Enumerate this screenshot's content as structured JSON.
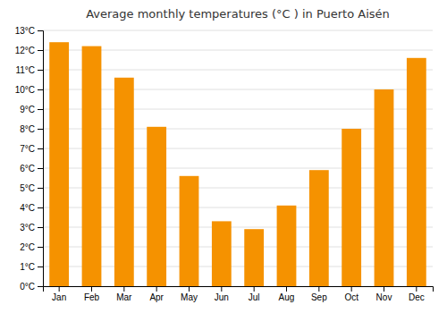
{
  "chart_data": {
    "type": "bar",
    "title": "Average monthly temperatures (°C ) in Puerto Aisén",
    "categories": [
      "Jan",
      "Feb",
      "Mar",
      "Apr",
      "May",
      "Jun",
      "Jul",
      "Aug",
      "Sep",
      "Oct",
      "Nov",
      "Dec"
    ],
    "values": [
      12.4,
      12.2,
      10.6,
      8.1,
      5.6,
      3.3,
      2.9,
      4.1,
      5.9,
      8.0,
      10.0,
      11.6
    ],
    "color": "#F59200",
    "ylim": [
      0,
      13
    ],
    "yticks": [
      {
        "value": 0,
        "label": "0°C"
      },
      {
        "value": 1,
        "label": "1°C"
      },
      {
        "value": 2,
        "label": "2°C"
      },
      {
        "value": 3,
        "label": "3°C"
      },
      {
        "value": 4,
        "label": "4°C"
      },
      {
        "value": 5,
        "label": "5°C"
      },
      {
        "value": 6,
        "label": "6°C"
      },
      {
        "value": 7,
        "label": "7°C"
      },
      {
        "value": 8,
        "label": "8°C"
      },
      {
        "value": 9,
        "label": "9°C"
      },
      {
        "value": 10,
        "label": "10°C"
      },
      {
        "value": 11,
        "label": "11°C"
      },
      {
        "value": 12,
        "label": "12°C"
      },
      {
        "value": 13,
        "label": "13°C"
      }
    ],
    "grid": true
  }
}
